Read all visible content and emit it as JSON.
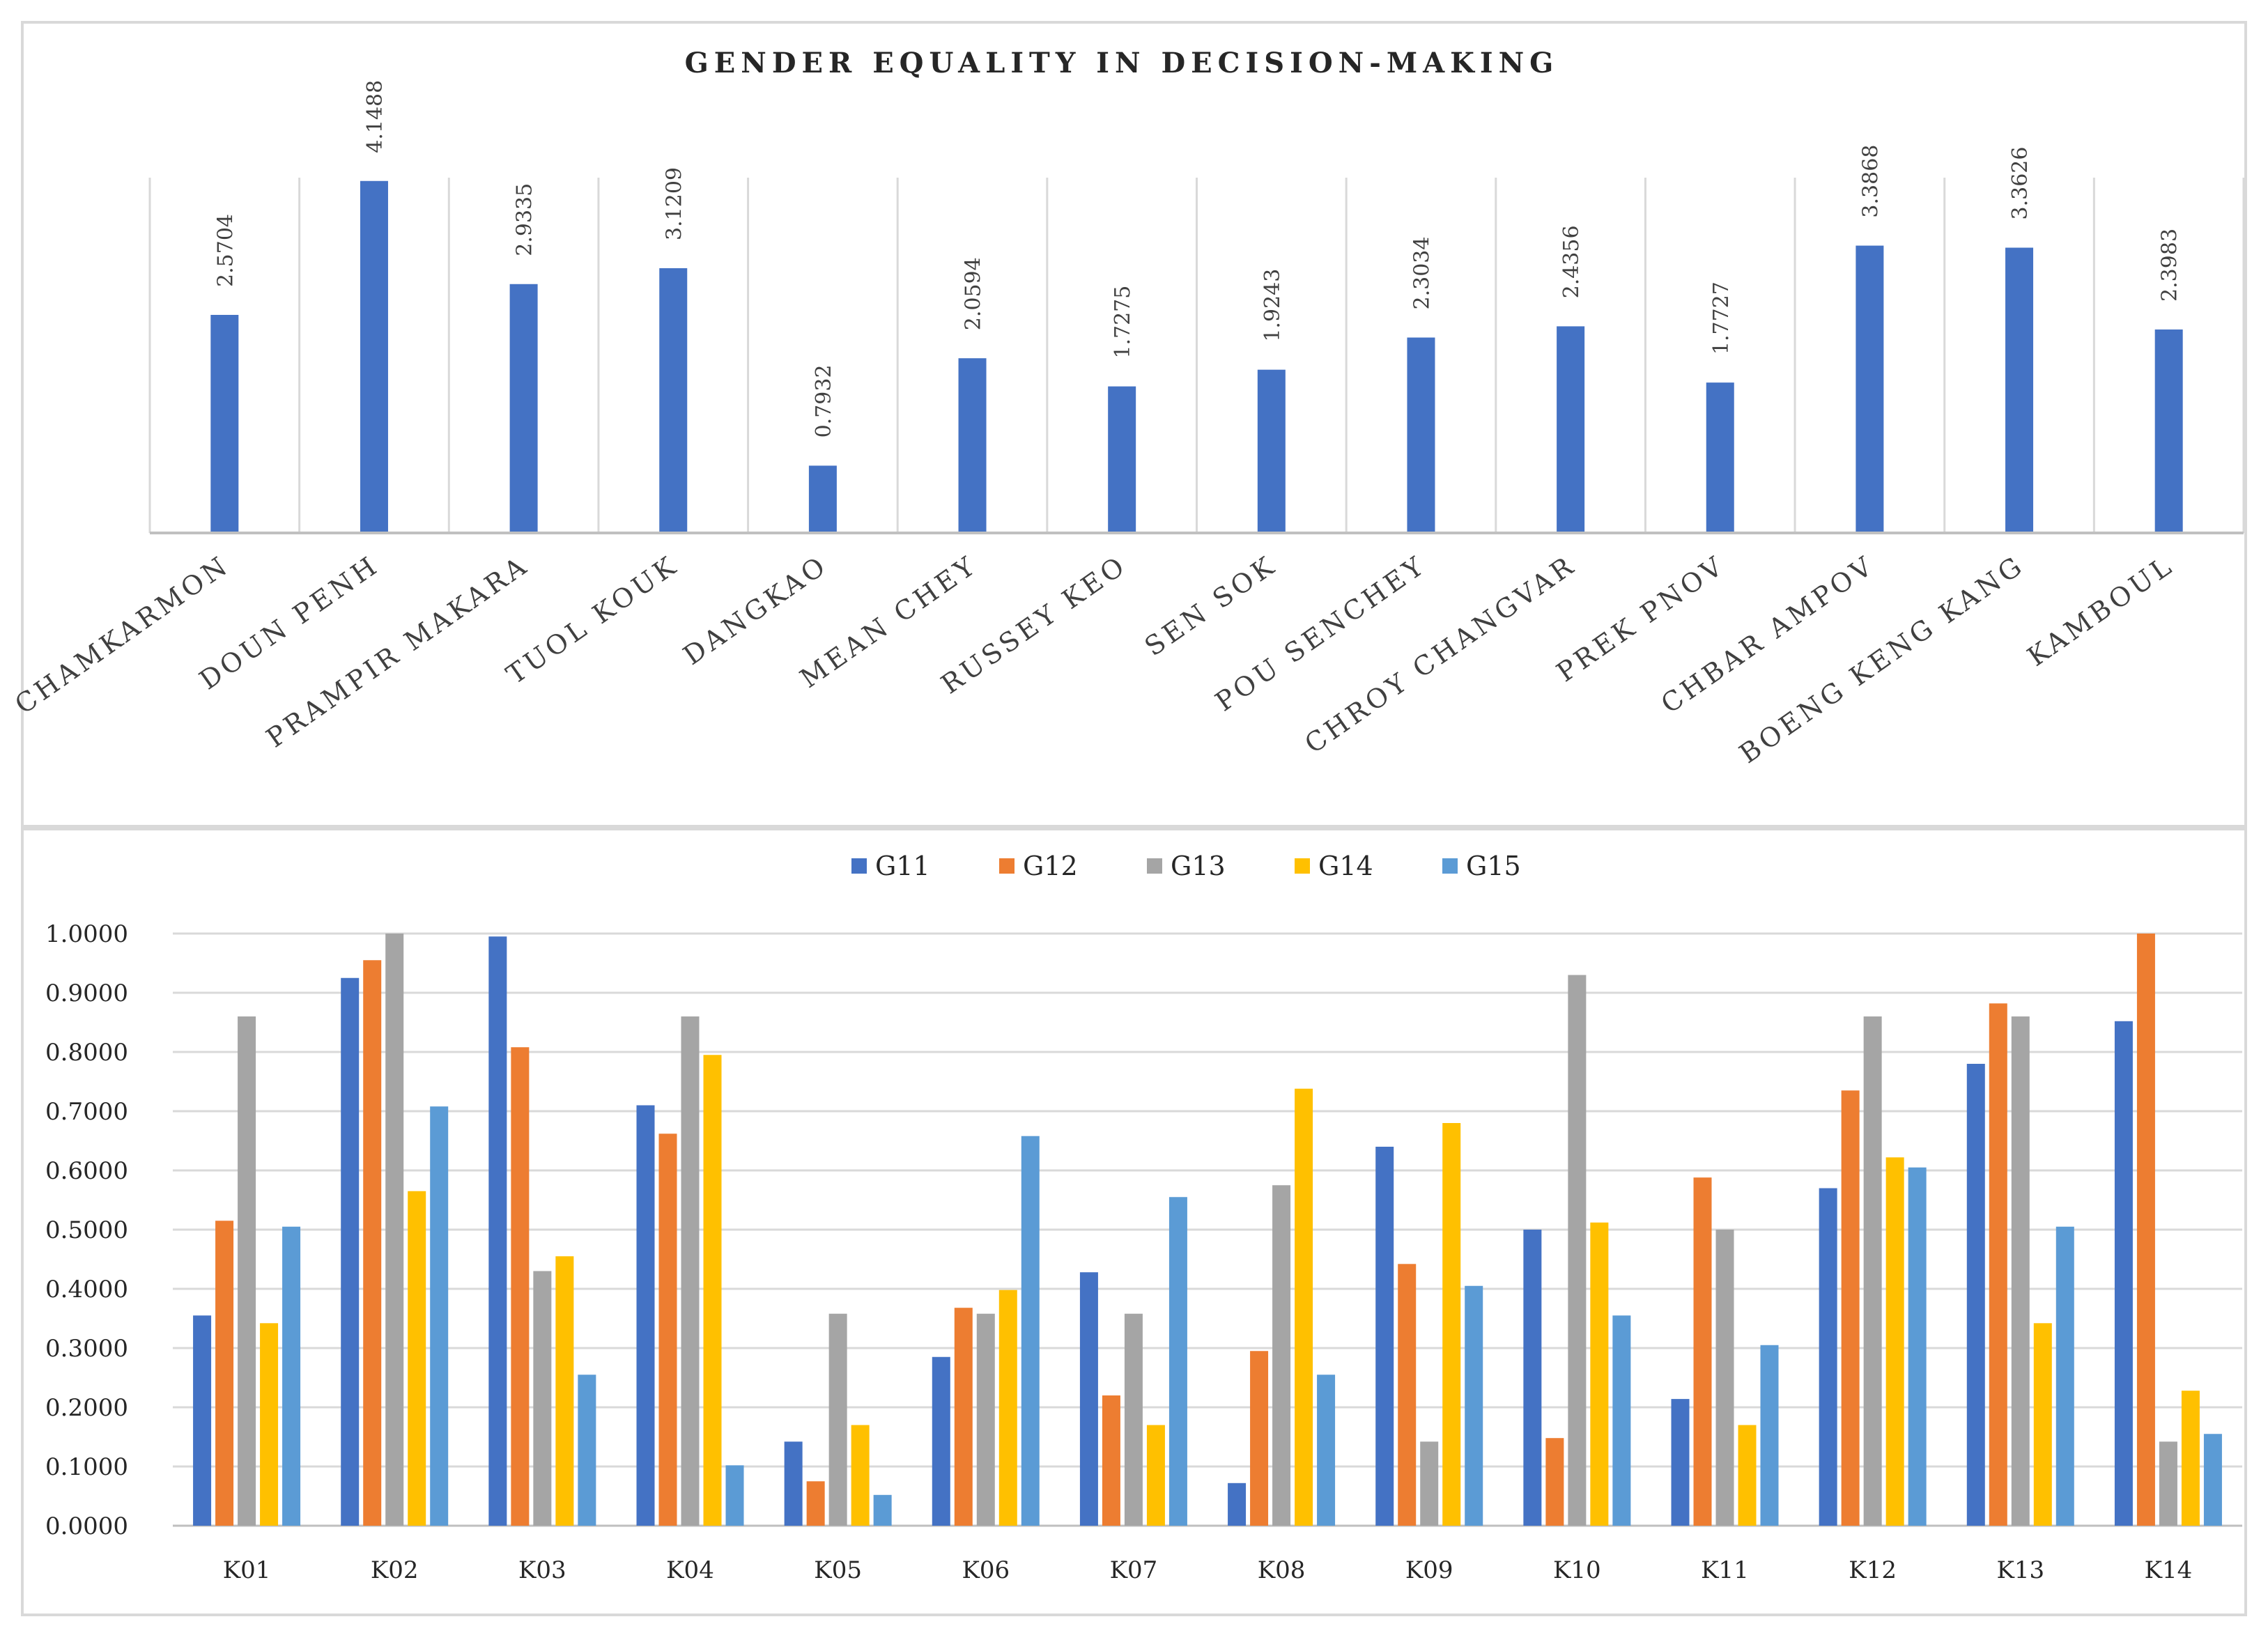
{
  "chart_data": [
    {
      "type": "bar",
      "title": "GENDER EQUALITY IN DECISION-MAKING",
      "categories": [
        "CHAMKARMON",
        "DOUN PENH",
        "PRAMPIR MAKARA",
        "TUOL KOUK",
        "DANGKAO",
        "MEAN CHEY",
        "RUSSEY KEO",
        "SEN SOK",
        "POU SENCHEY",
        "CHROY CHANGVAR",
        "PREK PNOV",
        "CHBAR AMPOV",
        "BOENG KENG KANG",
        "KAMBOUL"
      ],
      "values": [
        2.5704,
        4.1488,
        2.9335,
        3.1209,
        0.7932,
        2.0594,
        1.7275,
        1.9243,
        2.3034,
        2.4356,
        1.7727,
        3.3868,
        3.3626,
        2.3983
      ],
      "value_labels": [
        "2.5704",
        "4.1488",
        "2.9335",
        "3.1209",
        "0.7932",
        "2.0594",
        "1.7275",
        "1.9243",
        "2.3034",
        "2.4356",
        "1.7727",
        "3.3868",
        "3.3626",
        "2.3983"
      ],
      "color": "#4472c4",
      "ylim": [
        0,
        4.5
      ],
      "grid": "vertical"
    },
    {
      "type": "bar",
      "categories": [
        "K01",
        "K02",
        "K03",
        "K04",
        "K05",
        "K06",
        "K07",
        "K08",
        "K09",
        "K10",
        "K11",
        "K12",
        "K13",
        "K14"
      ],
      "series": [
        {
          "name": "G11",
          "color": "#4472c4",
          "values": [
            0.355,
            0.925,
            0.995,
            0.71,
            0.142,
            0.285,
            0.428,
            0.072,
            0.64,
            0.5,
            0.214,
            0.57,
            0.78,
            0.852
          ]
        },
        {
          "name": "G12",
          "color": "#ed7d31",
          "values": [
            0.515,
            0.955,
            0.808,
            0.662,
            0.075,
            0.368,
            0.22,
            0.295,
            0.442,
            0.148,
            0.588,
            0.735,
            0.882,
            1.0
          ]
        },
        {
          "name": "G13",
          "color": "#a5a5a5",
          "values": [
            0.86,
            1.0,
            0.43,
            0.86,
            0.358,
            0.358,
            0.358,
            0.575,
            0.142,
            0.93,
            0.5,
            0.86,
            0.86,
            0.142
          ]
        },
        {
          "name": "G14",
          "color": "#ffc000",
          "values": [
            0.342,
            0.565,
            0.455,
            0.795,
            0.17,
            0.398,
            0.17,
            0.738,
            0.68,
            0.512,
            0.17,
            0.622,
            0.342,
            0.228
          ]
        },
        {
          "name": "G15",
          "color": "#5b9bd5",
          "values": [
            0.505,
            0.708,
            0.255,
            0.102,
            0.052,
            0.658,
            0.555,
            0.255,
            0.405,
            0.355,
            0.305,
            0.605,
            0.505,
            0.155
          ]
        }
      ],
      "ylim": [
        0,
        1.0
      ],
      "yticks": [
        "0.0000",
        "0.1000",
        "0.2000",
        "0.3000",
        "0.4000",
        "0.5000",
        "0.6000",
        "0.7000",
        "0.8000",
        "0.9000",
        "1.0000"
      ],
      "legend": "top-center",
      "grid": "horizontal"
    }
  ]
}
